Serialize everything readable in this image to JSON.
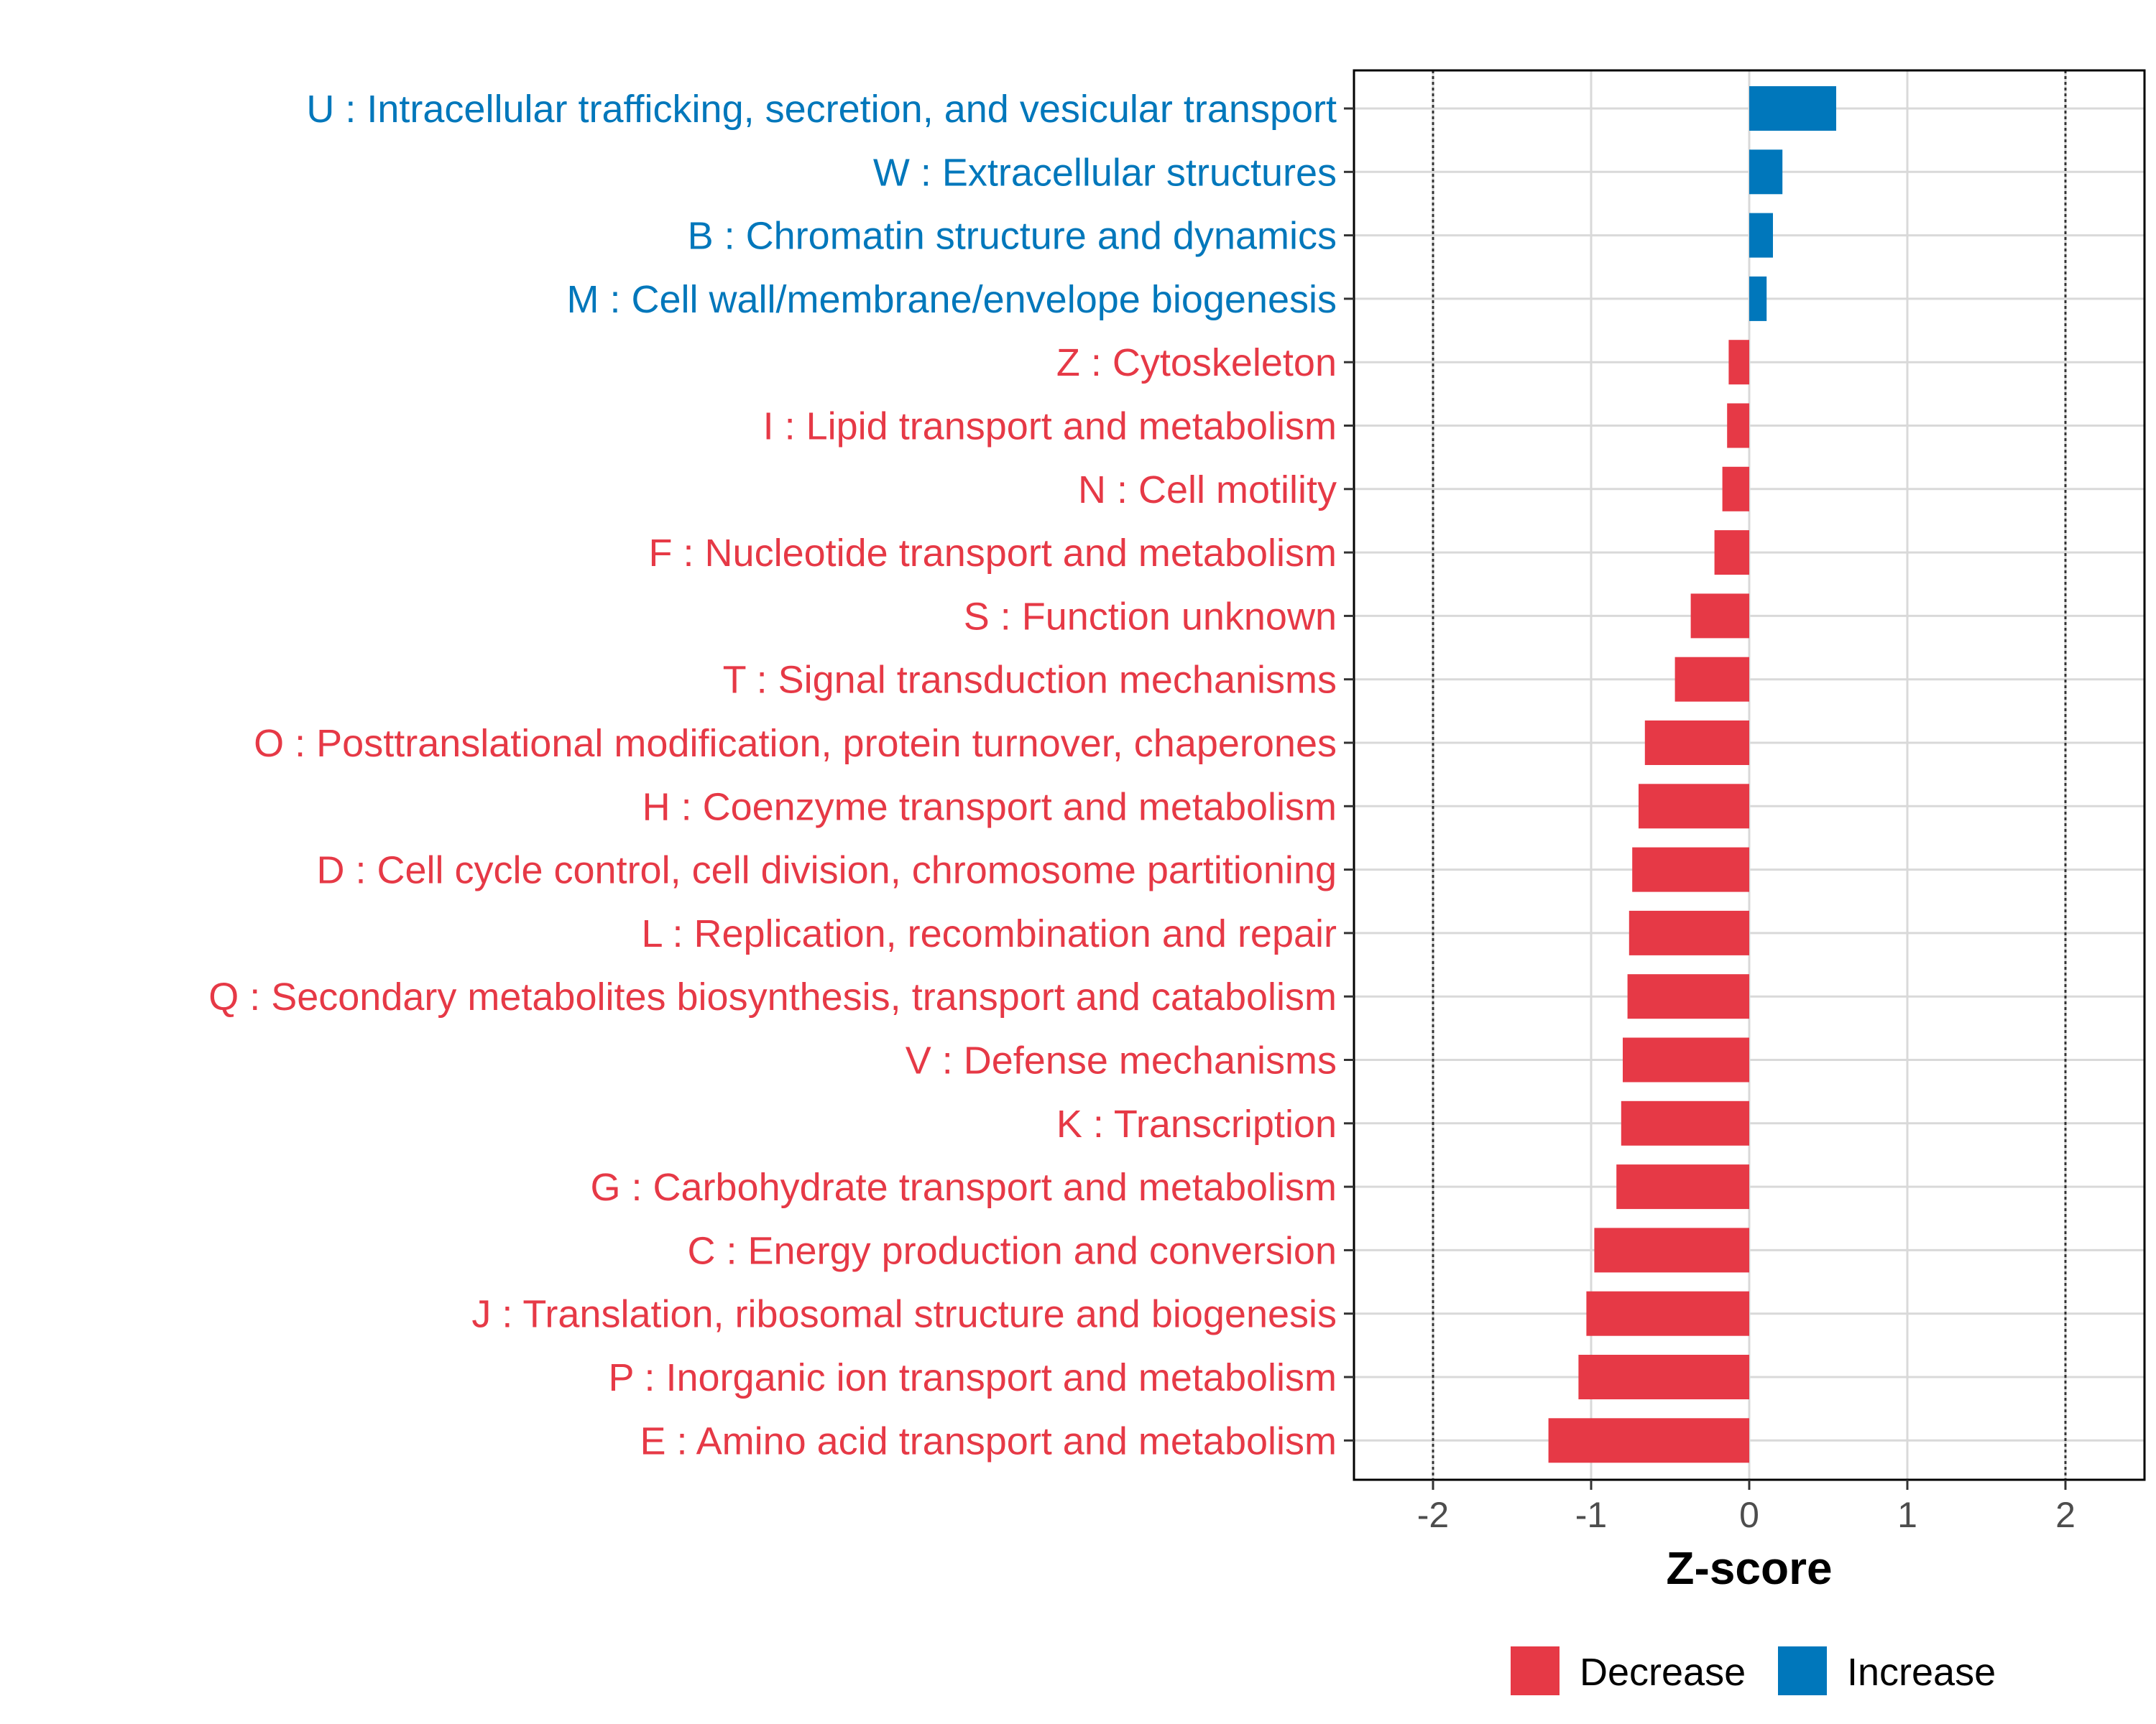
{
  "chart_data": {
    "type": "bar",
    "orientation": "horizontal",
    "title": "",
    "xlabel": "Z-score",
    "ylabel": "",
    "xlim": [
      -2.5,
      2.5
    ],
    "x_ticks": [
      -2,
      -1,
      0,
      1,
      2
    ],
    "x_tick_labels": [
      "-2",
      "-1",
      "0",
      "1",
      "2"
    ],
    "reference_lines": [
      -2,
      2
    ],
    "grid": true,
    "colors": {
      "Decrease": "#e63946",
      "Increase": "#0077bb"
    },
    "legend": {
      "position": "bottom",
      "entries": [
        {
          "label": "Decrease",
          "color": "#e63946"
        },
        {
          "label": "Increase",
          "color": "#0077bb"
        }
      ]
    },
    "categories": [
      "U : Intracellular trafficking, secretion, and vesicular transport",
      "W : Extracellular structures",
      "B : Chromatin structure and dynamics",
      "M : Cell wall/membrane/envelope biogenesis",
      "Z : Cytoskeleton",
      "I : Lipid transport and metabolism",
      "N : Cell motility",
      "F : Nucleotide transport and metabolism",
      "S : Function unknown",
      "T : Signal transduction mechanisms",
      "O : Posttranslational modification, protein turnover, chaperones",
      "H : Coenzyme transport and metabolism",
      "D : Cell cycle control, cell division, chromosome partitioning",
      "L : Replication, recombination and repair",
      "Q : Secondary metabolites biosynthesis, transport and catabolism",
      "V : Defense mechanisms",
      "K : Transcription",
      "G : Carbohydrate transport and metabolism",
      "C : Energy production and conversion",
      "J : Translation, ribosomal structure and biogenesis",
      "P : Inorganic ion transport and metabolism",
      "E : Amino acid transport and metabolism"
    ],
    "values": [
      0.55,
      0.21,
      0.15,
      0.11,
      -0.13,
      -0.14,
      -0.17,
      -0.22,
      -0.37,
      -0.47,
      -0.66,
      -0.7,
      -0.74,
      -0.76,
      -0.77,
      -0.8,
      -0.81,
      -0.84,
      -0.98,
      -1.03,
      -1.08,
      -1.27
    ],
    "groups": [
      "Increase",
      "Increase",
      "Increase",
      "Increase",
      "Decrease",
      "Decrease",
      "Decrease",
      "Decrease",
      "Decrease",
      "Decrease",
      "Decrease",
      "Decrease",
      "Decrease",
      "Decrease",
      "Decrease",
      "Decrease",
      "Decrease",
      "Decrease",
      "Decrease",
      "Decrease",
      "Decrease",
      "Decrease"
    ]
  }
}
